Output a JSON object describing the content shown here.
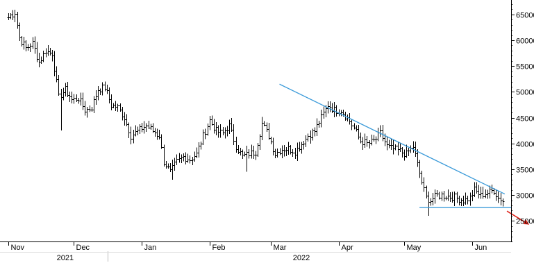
{
  "chart_data": {
    "type": "ohlc",
    "title": "",
    "xlabel": "",
    "ylabel": "",
    "ylim": [
      21000,
      67000
    ],
    "y_ticks": [
      25000,
      30000,
      35000,
      40000,
      45000,
      50000,
      55000,
      60000,
      65000
    ],
    "y_tick_labels": [
      "25000",
      "30000",
      "35000",
      "40000",
      "45000",
      "50000",
      "55000",
      "60000",
      "65000"
    ],
    "x_range": [
      "2021-11-01",
      "2022-06-10"
    ],
    "month_ticks": [
      {
        "label": "Nov",
        "date": "2021-11-01"
      },
      {
        "label": "Dec",
        "date": "2021-12-01"
      },
      {
        "label": "Jan",
        "date": "2022-01-01"
      },
      {
        "label": "Feb",
        "date": "2022-02-01"
      },
      {
        "label": "Mar",
        "date": "2022-03-01"
      },
      {
        "label": "Apr",
        "date": "2022-04-01"
      },
      {
        "label": "May",
        "date": "2022-05-01"
      },
      {
        "label": "Jun",
        "date": "2022-06-01"
      }
    ],
    "year_labels": [
      {
        "label": "2021",
        "date": "2021-11-27"
      },
      {
        "label": "2022",
        "date": "2022-03-15"
      }
    ],
    "year_separator_date": "2022-01-01",
    "price_keypoints": [
      [
        "2021-11-01",
        64500
      ],
      [
        "2021-11-04",
        65500
      ],
      [
        "2021-11-06",
        60500
      ],
      [
        "2021-11-09",
        58500
      ],
      [
        "2021-11-12",
        59500
      ],
      [
        "2021-11-15",
        55800
      ],
      [
        "2021-11-18",
        58000
      ],
      [
        "2021-11-21",
        57500
      ],
      [
        "2021-11-24",
        49000
      ],
      [
        "2021-11-27",
        50500
      ],
      [
        "2021-11-30",
        48500
      ],
      [
        "2021-12-03",
        48800
      ],
      [
        "2021-12-06",
        46500
      ],
      [
        "2021-12-09",
        47000
      ],
      [
        "2021-12-12",
        50500
      ],
      [
        "2021-12-15",
        51000
      ],
      [
        "2021-12-18",
        47500
      ],
      [
        "2021-12-21",
        47000
      ],
      [
        "2021-12-24",
        45000
      ],
      [
        "2021-12-27",
        41500
      ],
      [
        "2021-12-30",
        42500
      ],
      [
        "2022-01-03",
        43500
      ],
      [
        "2022-01-06",
        42500
      ],
      [
        "2022-01-09",
        41500
      ],
      [
        "2022-01-11",
        36500
      ],
      [
        "2022-01-14",
        34500
      ],
      [
        "2022-01-17",
        36500
      ],
      [
        "2022-01-20",
        37500
      ],
      [
        "2022-01-23",
        37000
      ],
      [
        "2022-01-26",
        38000
      ],
      [
        "2022-01-29",
        41500
      ],
      [
        "2022-02-01",
        44500
      ],
      [
        "2022-02-04",
        42500
      ],
      [
        "2022-02-07",
        42000
      ],
      [
        "2022-02-10",
        43500
      ],
      [
        "2022-02-13",
        39500
      ],
      [
        "2022-02-16",
        37500
      ],
      [
        "2022-02-19",
        38000
      ],
      [
        "2022-02-22",
        38500
      ],
      [
        "2022-02-25",
        44000
      ],
      [
        "2022-02-28",
        41500
      ],
      [
        "2022-03-03",
        38000
      ],
      [
        "2022-03-06",
        39000
      ],
      [
        "2022-03-09",
        39000
      ],
      [
        "2022-03-12",
        38500
      ],
      [
        "2022-03-15",
        40000
      ],
      [
        "2022-03-18",
        41500
      ],
      [
        "2022-03-21",
        42500
      ],
      [
        "2022-03-24",
        45000
      ],
      [
        "2022-03-27",
        47500
      ],
      [
        "2022-03-30",
        46500
      ],
      [
        "2022-04-02",
        46500
      ],
      [
        "2022-04-05",
        45000
      ],
      [
        "2022-04-08",
        43000
      ],
      [
        "2022-04-11",
        40500
      ],
      [
        "2022-04-14",
        40000
      ],
      [
        "2022-04-17",
        40500
      ],
      [
        "2022-04-20",
        42000
      ],
      [
        "2022-04-23",
        39500
      ],
      [
        "2022-04-26",
        39000
      ],
      [
        "2022-04-29",
        38500
      ],
      [
        "2022-05-02",
        38000
      ],
      [
        "2022-05-05",
        39500
      ],
      [
        "2022-05-07",
        36000
      ],
      [
        "2022-05-09",
        32500
      ],
      [
        "2022-05-11",
        29500
      ],
      [
        "2022-05-13",
        29000
      ],
      [
        "2022-05-16",
        30000
      ],
      [
        "2022-05-19",
        30000
      ],
      [
        "2022-05-22",
        29800
      ],
      [
        "2022-05-25",
        29500
      ],
      [
        "2022-05-28",
        29000
      ],
      [
        "2022-05-31",
        29500
      ],
      [
        "2022-06-02",
        31000
      ],
      [
        "2022-06-05",
        30000
      ],
      [
        "2022-06-08",
        30500
      ],
      [
        "2022-06-11",
        31000
      ],
      [
        "2022-06-13",
        29500
      ],
      [
        "2022-06-15",
        29000
      ]
    ],
    "low_spikes": [
      {
        "date": "2021-11-25",
        "low": 42500
      },
      {
        "date": "2022-01-15",
        "low": 33000
      },
      {
        "date": "2022-02-18",
        "low": 34500
      },
      {
        "date": "2022-05-12",
        "low": 26000
      }
    ],
    "trendlines": [
      {
        "name": "descending-resistance",
        "color": "#3a9ad9",
        "start": {
          "date": "2022-03-05",
          "value": 51500
        },
        "end": {
          "date": "2022-06-16",
          "value": 30200
        }
      },
      {
        "name": "horizontal-support",
        "color": "#3a9ad9",
        "start": {
          "date": "2022-05-08",
          "value": 27600
        },
        "end": {
          "date": "2022-06-19",
          "value": 27600
        }
      }
    ],
    "arrow": {
      "color": "#e0241b",
      "direction": "down-right",
      "start": {
        "date": "2022-06-17",
        "value": 26900
      },
      "end": {
        "date": "2022-06-27",
        "value": 24300
      }
    },
    "grid": false,
    "legend": "none"
  }
}
